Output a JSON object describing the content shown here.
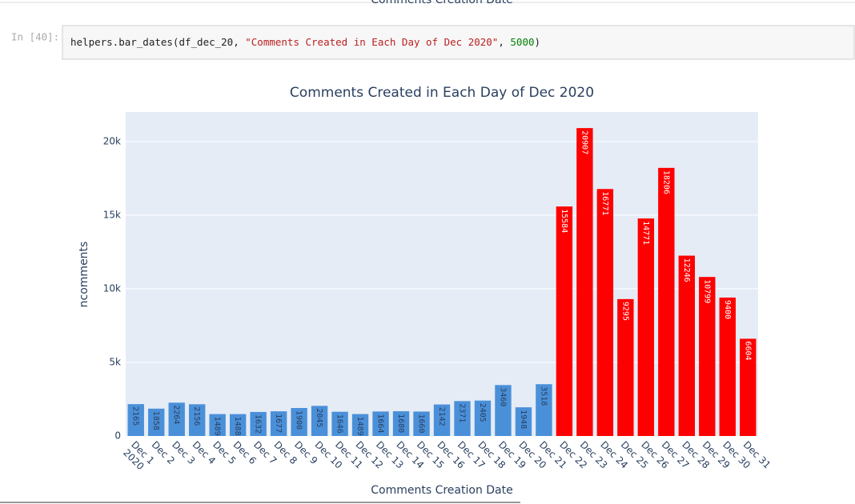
{
  "previous_output": {
    "x_axis_title": "Comments Creation Date"
  },
  "cell": {
    "prompt": "In [40]:",
    "tokens": [
      {
        "text": "helpers.bar_dates(df_dec_20, ",
        "color": "#212121"
      },
      {
        "text": "\"Comments Created in Each Day of Dec 2020\"",
        "color": "#ba2121"
      },
      {
        "text": ", ",
        "color": "#212121"
      },
      {
        "text": "5000",
        "color": "#008000"
      },
      {
        "text": ")",
        "color": "#212121"
      }
    ]
  },
  "chart_data": {
    "type": "bar",
    "title": "Comments Created in Each Day of Dec 2020",
    "x_label": "Comments Creation Date",
    "y_label": "ncomments",
    "categories": [
      "Dec 1",
      "Dec 2",
      "Dec 3",
      "Dec 4",
      "Dec 5",
      "Dec 6",
      "Dec 7",
      "Dec 8",
      "Dec 9",
      "Dec 10",
      "Dec 11",
      "Dec 12",
      "Dec 13",
      "Dec 14",
      "Dec 15",
      "Dec 16",
      "Dec 17",
      "Dec 18",
      "Dec 19",
      "Dec 20",
      "Dec 21",
      "Dec 22",
      "Dec 23",
      "Dec 24",
      "Dec 25",
      "Dec 26",
      "Dec 27",
      "Dec 28",
      "Dec 29",
      "Dec 30",
      "Dec 31"
    ],
    "first_category_year": "2020",
    "values": [
      2165,
      1858,
      2264,
      2156,
      1489,
      1488,
      1632,
      1677,
      1900,
      2045,
      1646,
      1489,
      1664,
      1680,
      1660,
      2142,
      2371,
      2405,
      3460,
      1948,
      3518,
      15584,
      20907,
      16771,
      9295,
      14771,
      18206,
      12246,
      10799,
      9400,
      6604
    ],
    "colors": [
      "#4a90d9",
      "#4a90d9",
      "#4a90d9",
      "#4a90d9",
      "#4a90d9",
      "#4a90d9",
      "#4a90d9",
      "#4a90d9",
      "#4a90d9",
      "#4a90d9",
      "#4a90d9",
      "#4a90d9",
      "#4a90d9",
      "#4a90d9",
      "#4a90d9",
      "#4a90d9",
      "#4a90d9",
      "#4a90d9",
      "#4a90d9",
      "#4a90d9",
      "#4a90d9",
      "#ff0000",
      "#ff0000",
      "#ff0000",
      "#ff0000",
      "#ff0000",
      "#ff0000",
      "#ff0000",
      "#ff0000",
      "#ff0000",
      "#ff0000"
    ],
    "ylim": [
      0,
      22000
    ],
    "yticks": [
      0,
      {
        "value": 5000,
        "label": "5k"
      },
      {
        "value": 10000,
        "label": "10k"
      },
      {
        "value": 15000,
        "label": "15k"
      },
      {
        "value": 20000,
        "label": "20k"
      }
    ],
    "grid": true
  }
}
